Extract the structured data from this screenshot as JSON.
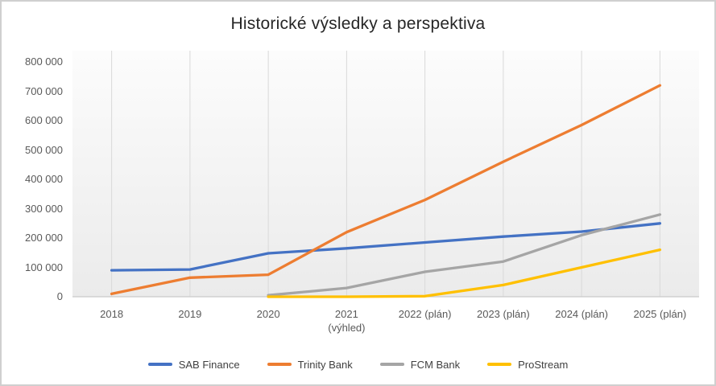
{
  "chart_data": {
    "type": "line",
    "title": "Historické výsledky a perspektiva",
    "categories": [
      "2018",
      "2019",
      "2020",
      "2021\n(výhled)",
      "2022 (plán)",
      "2023 (plán)",
      "2024 (plán)",
      "2025 (plán)"
    ],
    "xlabel": "",
    "ylabel": "",
    "ylim": [
      0,
      800000
    ],
    "grid": "vertical-only",
    "legend_position": "bottom",
    "y_ticks": [
      {
        "value": 0,
        "label": "0"
      },
      {
        "value": 100000,
        "label": "100 000"
      },
      {
        "value": 200000,
        "label": "200 000"
      },
      {
        "value": 300000,
        "label": "300 000"
      },
      {
        "value": 400000,
        "label": "400 000"
      },
      {
        "value": 500000,
        "label": "500 000"
      },
      {
        "value": 600000,
        "label": "600 000"
      },
      {
        "value": 700000,
        "label": "700 000"
      },
      {
        "value": 800000,
        "label": "800 000"
      }
    ],
    "series": [
      {
        "name": "SAB Finance",
        "color": "#4472C4",
        "values": [
          90000,
          93000,
          148000,
          165000,
          185000,
          205000,
          222000,
          250000
        ]
      },
      {
        "name": "Trinity Bank",
        "color": "#ED7D31",
        "values": [
          10000,
          65000,
          75000,
          220000,
          330000,
          460000,
          585000,
          720000
        ]
      },
      {
        "name": "FCM Bank",
        "color": "#A5A5A5",
        "values": [
          null,
          null,
          5000,
          30000,
          85000,
          120000,
          210000,
          280000
        ]
      },
      {
        "name": "ProStream",
        "color": "#FFC000",
        "values": [
          null,
          null,
          0,
          0,
          2000,
          40000,
          100000,
          160000
        ]
      }
    ]
  },
  "colors": {
    "axis_text": "#595959",
    "title_text": "#262626",
    "gridline": "#d9d9d9",
    "baseline": "#c9c9c9",
    "plot_bg_top": "#fcfcfc",
    "plot_bg_bottom": "#ebebeb",
    "frame_border": "#cfcfcf"
  }
}
